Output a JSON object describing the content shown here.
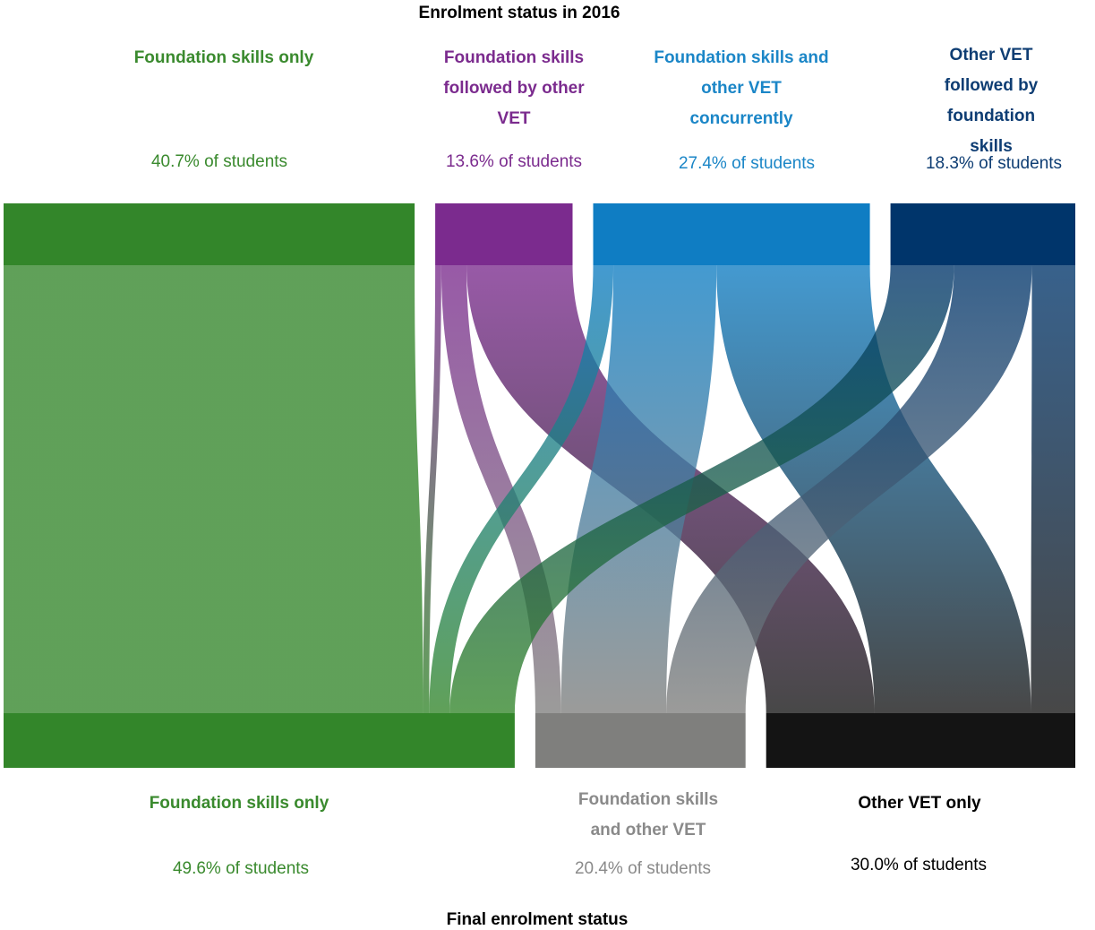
{
  "chart_data": {
    "type": "sankey",
    "title": "Enrolment status in 2016",
    "xlabel": "Final enrolment status",
    "source_nodes": [
      {
        "key": "fs_only",
        "label": "Foundation skills only",
        "percent_text": "40.7% of students",
        "value": 40.7,
        "color": "#33862a",
        "text_color": "#3a8a2e"
      },
      {
        "key": "fs_then_vet",
        "label": "Foundation skills followed by other VET",
        "percent_text": "13.6% of students",
        "value": 13.6,
        "color": "#7b2b8e",
        "text_color": "#7b2b8e"
      },
      {
        "key": "fs_and_vet",
        "label": "Foundation skills and other VET concurrently",
        "percent_text": "27.4% of students",
        "value": 27.4,
        "color": "#0f7dc3",
        "text_color": "#1b86c7"
      },
      {
        "key": "vet_then_fs",
        "label": "Other VET followed by foundation skills",
        "percent_text": "18.3% of students",
        "value": 18.3,
        "color": "#00356b",
        "text_color": "#0e3d73"
      }
    ],
    "target_nodes": [
      {
        "key": "t_fs_only",
        "label": "Foundation skills only",
        "percent_text": "49.6% of students",
        "value": 49.6,
        "color": "#33862a",
        "text_color": "#3a8a2e"
      },
      {
        "key": "t_fs_and_vet",
        "label": "Foundation skills and other VET",
        "percent_text": "20.4% of students",
        "value": 20.4,
        "color": "#7f7f7d",
        "text_color": "#8a8a8a"
      },
      {
        "key": "t_vet_only",
        "label": "Other VET only",
        "percent_text": "30.0% of students",
        "value": 30.0,
        "color": "#141414",
        "text_color": "#000000"
      }
    ],
    "flows": [
      {
        "source": "fs_only",
        "target": "t_fs_only",
        "value": 40.7
      },
      {
        "source": "fs_then_vet",
        "target": "t_fs_only",
        "value": 0.6
      },
      {
        "source": "fs_then_vet",
        "target": "t_fs_and_vet",
        "value": 2.5
      },
      {
        "source": "fs_then_vet",
        "target": "t_vet_only",
        "value": 10.5
      },
      {
        "source": "fs_and_vet",
        "target": "t_fs_only",
        "value": 2.0
      },
      {
        "source": "fs_and_vet",
        "target": "t_fs_and_vet",
        "value": 10.2
      },
      {
        "source": "fs_and_vet",
        "target": "t_vet_only",
        "value": 15.2
      },
      {
        "source": "vet_then_fs",
        "target": "t_fs_only",
        "value": 6.3
      },
      {
        "source": "vet_then_fs",
        "target": "t_fs_and_vet",
        "value": 7.7
      },
      {
        "source": "vet_then_fs",
        "target": "t_vet_only",
        "value": 4.3
      }
    ]
  }
}
